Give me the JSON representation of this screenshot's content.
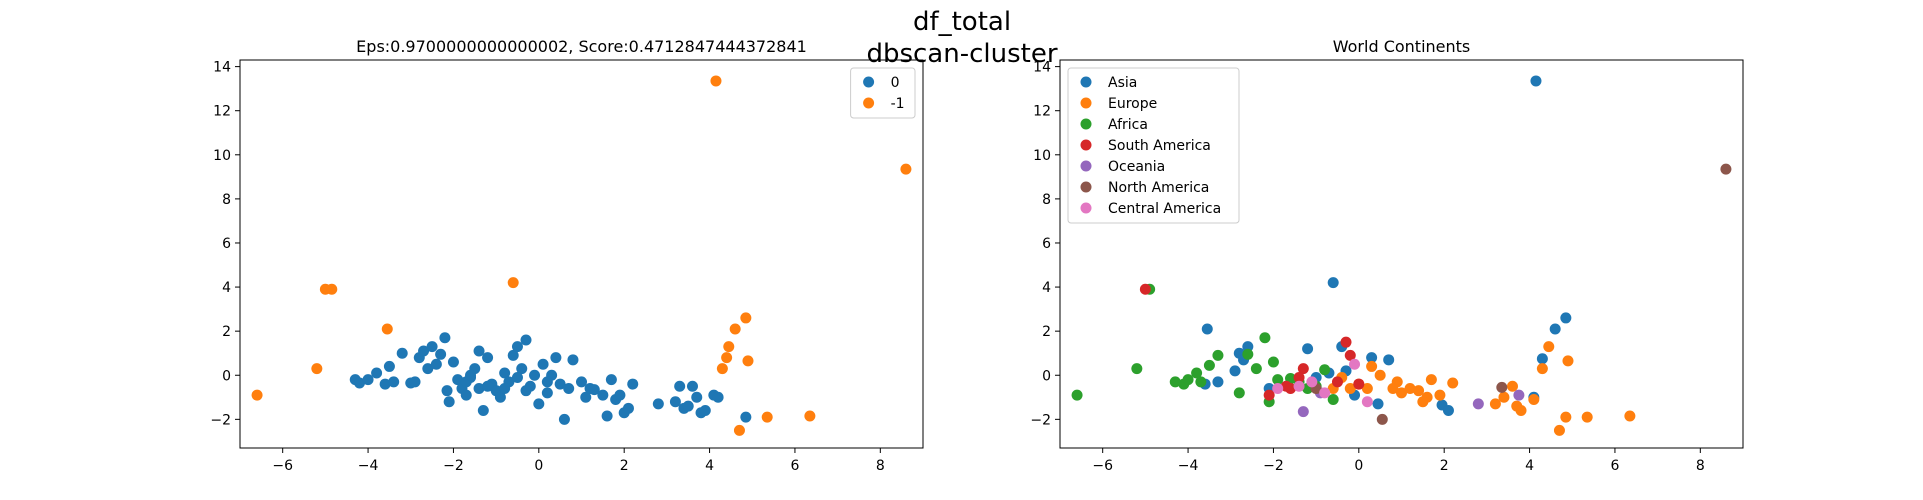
{
  "figure": {
    "suptitle_line1": "df_total",
    "suptitle_line2": "dbscan-cluster"
  },
  "colors": {
    "0": "#1f77b4",
    "-1": "#ff7f0e",
    "Asia": "#1f77b4",
    "Europe": "#ff7f0e",
    "Africa": "#2ca02c",
    "South America": "#d62728",
    "Oceania": "#9467bd",
    "North America": "#8c564b",
    "Central America": "#e377c2"
  },
  "chart_data": [
    {
      "type": "scatter",
      "title": "Eps:0.9700000000000002, Score:0.4712847444372841",
      "xlabel": "",
      "ylabel": "",
      "xlim": [
        -7.0,
        9.0
      ],
      "ylim": [
        -3.3,
        14.3
      ],
      "xticks": [
        -6,
        -4,
        -2,
        0,
        2,
        4,
        6,
        8
      ],
      "yticks": [
        -2,
        0,
        2,
        4,
        6,
        8,
        10,
        12,
        14
      ],
      "legend_position": "upper right",
      "series": [
        {
          "name": "0",
          "points": [
            [
              -4.3,
              -0.2
            ],
            [
              -4.2,
              -0.35
            ],
            [
              -4.0,
              -0.2
            ],
            [
              -3.8,
              0.1
            ],
            [
              -3.6,
              -0.4
            ],
            [
              -3.5,
              0.4
            ],
            [
              -3.4,
              -0.3
            ],
            [
              -3.2,
              1.0
            ],
            [
              -3.0,
              -0.35
            ],
            [
              -2.9,
              -0.3
            ],
            [
              -2.8,
              0.8
            ],
            [
              -2.7,
              1.1
            ],
            [
              -2.6,
              0.3
            ],
            [
              -2.5,
              1.3
            ],
            [
              -2.4,
              0.5
            ],
            [
              -2.3,
              0.95
            ],
            [
              -2.2,
              1.7
            ],
            [
              -2.15,
              -0.7
            ],
            [
              -2.1,
              -1.2
            ],
            [
              -2.0,
              0.6
            ],
            [
              -1.9,
              -0.2
            ],
            [
              -1.8,
              -0.6
            ],
            [
              -1.7,
              -0.9
            ],
            [
              -1.6,
              -0.1
            ],
            [
              -1.5,
              0.3
            ],
            [
              -1.4,
              1.1
            ],
            [
              -1.3,
              -1.6
            ],
            [
              -1.2,
              0.8
            ],
            [
              -1.1,
              -0.4
            ],
            [
              -1.0,
              -0.7
            ],
            [
              -0.9,
              -1.0
            ],
            [
              -0.8,
              0.1
            ],
            [
              -0.7,
              -0.3
            ],
            [
              -0.6,
              0.9
            ],
            [
              -0.5,
              1.3
            ],
            [
              -0.4,
              0.3
            ],
            [
              -0.3,
              1.6
            ],
            [
              -0.2,
              -0.5
            ],
            [
              -0.1,
              0.0
            ],
            [
              0.0,
              -1.3
            ],
            [
              0.1,
              0.5
            ],
            [
              0.2,
              -0.8
            ],
            [
              0.3,
              0.0
            ],
            [
              0.4,
              0.8
            ],
            [
              0.5,
              -0.4
            ],
            [
              0.6,
              -2.0
            ],
            [
              0.7,
              -0.6
            ],
            [
              0.8,
              0.7
            ],
            [
              1.0,
              -0.3
            ],
            [
              1.1,
              -1.0
            ],
            [
              1.2,
              -0.6
            ],
            [
              1.3,
              -0.65
            ],
            [
              1.5,
              -0.9
            ],
            [
              1.6,
              -1.85
            ],
            [
              1.7,
              -0.2
            ],
            [
              1.8,
              -1.1
            ],
            [
              1.9,
              -0.9
            ],
            [
              2.0,
              -1.7
            ],
            [
              2.1,
              -1.5
            ],
            [
              2.2,
              -0.4
            ],
            [
              2.8,
              -1.3
            ],
            [
              3.2,
              -1.2
            ],
            [
              3.3,
              -0.5
            ],
            [
              3.4,
              -1.5
            ],
            [
              3.5,
              -1.4
            ],
            [
              3.6,
              -0.5
            ],
            [
              3.7,
              -1.0
            ],
            [
              3.8,
              -1.7
            ],
            [
              3.9,
              -1.6
            ],
            [
              4.1,
              -0.9
            ],
            [
              4.2,
              -1.0
            ],
            [
              4.85,
              -1.9
            ],
            [
              -1.7,
              -0.3
            ],
            [
              -1.4,
              -0.6
            ],
            [
              -1.2,
              -0.5
            ],
            [
              -0.5,
              -0.1
            ],
            [
              -0.3,
              -0.7
            ],
            [
              0.2,
              -0.3
            ],
            [
              -1.6,
              0.0
            ],
            [
              -0.8,
              -0.6
            ]
          ]
        },
        {
          "name": "-1",
          "points": [
            [
              -6.6,
              -0.9
            ],
            [
              -5.2,
              0.3
            ],
            [
              -5.0,
              3.9
            ],
            [
              -4.85,
              3.9
            ],
            [
              -3.55,
              2.1
            ],
            [
              -0.6,
              4.2
            ],
            [
              4.15,
              13.35
            ],
            [
              4.3,
              0.3
            ],
            [
              4.4,
              0.8
            ],
            [
              4.45,
              1.3
            ],
            [
              4.6,
              2.1
            ],
            [
              4.7,
              -2.5
            ],
            [
              4.85,
              2.6
            ],
            [
              4.9,
              0.65
            ],
            [
              5.35,
              -1.9
            ],
            [
              6.35,
              -1.85
            ],
            [
              8.6,
              9.35
            ]
          ]
        }
      ]
    },
    {
      "type": "scatter",
      "title": "World Continents",
      "xlabel": "",
      "ylabel": "",
      "xlim": [
        -7.0,
        9.0
      ],
      "ylim": [
        -3.3,
        14.3
      ],
      "xticks": [
        -6,
        -4,
        -2,
        0,
        2,
        4,
        6,
        8
      ],
      "yticks": [
        -2,
        0,
        2,
        4,
        6,
        8,
        10,
        12,
        14
      ],
      "legend_position": "upper left",
      "series": [
        {
          "name": "Asia",
          "points": [
            [
              4.15,
              13.35
            ],
            [
              -0.6,
              4.2
            ],
            [
              4.85,
              2.6
            ],
            [
              4.6,
              2.1
            ],
            [
              -3.55,
              2.1
            ],
            [
              -2.6,
              1.3
            ],
            [
              -1.2,
              1.2
            ],
            [
              -0.4,
              1.3
            ],
            [
              0.3,
              0.8
            ],
            [
              0.7,
              0.7
            ],
            [
              -2.8,
              1.0
            ],
            [
              -2.7,
              0.7
            ],
            [
              4.3,
              0.75
            ],
            [
              -2.9,
              0.2
            ],
            [
              -0.3,
              0.2
            ],
            [
              -3.6,
              -0.4
            ],
            [
              -3.3,
              -0.3
            ],
            [
              -2.1,
              -0.6
            ],
            [
              -0.1,
              -0.9
            ],
            [
              0.45,
              -1.3
            ],
            [
              1.95,
              -1.35
            ],
            [
              2.1,
              -1.6
            ],
            [
              4.1,
              -1.0
            ],
            [
              -1.0,
              -0.1
            ],
            [
              -0.7,
              0.1
            ]
          ]
        },
        {
          "name": "Europe",
          "points": [
            [
              4.45,
              1.3
            ],
            [
              4.3,
              0.3
            ],
            [
              4.9,
              0.65
            ],
            [
              0.3,
              0.4
            ],
            [
              0.5,
              0.0
            ],
            [
              -0.4,
              -0.1
            ],
            [
              -0.2,
              -0.6
            ],
            [
              0.2,
              -0.6
            ],
            [
              0.9,
              -0.3
            ],
            [
              1.2,
              -0.6
            ],
            [
              1.4,
              -0.7
            ],
            [
              1.6,
              -1.0
            ],
            [
              1.7,
              -0.2
            ],
            [
              1.9,
              -0.9
            ],
            [
              2.2,
              -0.35
            ],
            [
              3.2,
              -1.3
            ],
            [
              3.4,
              -1.0
            ],
            [
              3.6,
              -0.5
            ],
            [
              3.7,
              -1.4
            ],
            [
              3.8,
              -1.6
            ],
            [
              4.1,
              -1.1
            ],
            [
              4.7,
              -2.5
            ],
            [
              4.85,
              -1.9
            ],
            [
              5.35,
              -1.9
            ],
            [
              6.35,
              -1.85
            ],
            [
              1.0,
              -0.8
            ],
            [
              1.5,
              -1.2
            ],
            [
              -0.6,
              -0.6
            ],
            [
              0.0,
              -0.4
            ],
            [
              0.8,
              -0.6
            ]
          ]
        },
        {
          "name": "Africa",
          "points": [
            [
              -6.6,
              -0.9
            ],
            [
              -5.2,
              0.3
            ],
            [
              -4.9,
              3.9
            ],
            [
              -4.3,
              -0.3
            ],
            [
              -4.1,
              -0.4
            ],
            [
              -4.0,
              -0.2
            ],
            [
              -3.8,
              0.1
            ],
            [
              -3.5,
              0.45
            ],
            [
              -3.3,
              0.9
            ],
            [
              -2.4,
              0.3
            ],
            [
              -2.2,
              1.7
            ],
            [
              -2.0,
              0.6
            ],
            [
              -1.9,
              -0.2
            ],
            [
              -1.6,
              -0.15
            ],
            [
              -2.8,
              -0.8
            ],
            [
              -2.1,
              -1.2
            ],
            [
              -1.4,
              -0.3
            ],
            [
              -0.8,
              0.25
            ],
            [
              -0.6,
              -1.1
            ],
            [
              -1.2,
              -0.6
            ],
            [
              -1.0,
              -0.5
            ],
            [
              -3.7,
              -0.3
            ],
            [
              -2.6,
              0.95
            ]
          ]
        },
        {
          "name": "South America",
          "points": [
            [
              -5.0,
              3.9
            ],
            [
              -0.3,
              1.5
            ],
            [
              -0.2,
              0.9
            ],
            [
              -1.3,
              0.3
            ],
            [
              -1.4,
              -0.1
            ],
            [
              -1.7,
              -0.5
            ],
            [
              -1.6,
              -0.6
            ],
            [
              -0.5,
              -0.3
            ],
            [
              0.0,
              -0.4
            ],
            [
              -2.1,
              -0.9
            ]
          ]
        },
        {
          "name": "Oceania",
          "points": [
            [
              2.8,
              -1.3
            ],
            [
              3.75,
              -0.9
            ],
            [
              -1.3,
              -1.65
            ],
            [
              -0.9,
              -0.8
            ]
          ]
        },
        {
          "name": "North America",
          "points": [
            [
              8.6,
              9.35
            ],
            [
              0.55,
              -2.0
            ],
            [
              3.35,
              -0.55
            ],
            [
              -1.0,
              -0.6
            ]
          ]
        },
        {
          "name": "Central America",
          "points": [
            [
              -0.1,
              0.5
            ],
            [
              -1.1,
              -0.3
            ],
            [
              -1.4,
              -0.5
            ],
            [
              -0.8,
              -0.8
            ],
            [
              0.2,
              -1.2
            ],
            [
              -1.9,
              -0.6
            ]
          ]
        }
      ]
    }
  ]
}
